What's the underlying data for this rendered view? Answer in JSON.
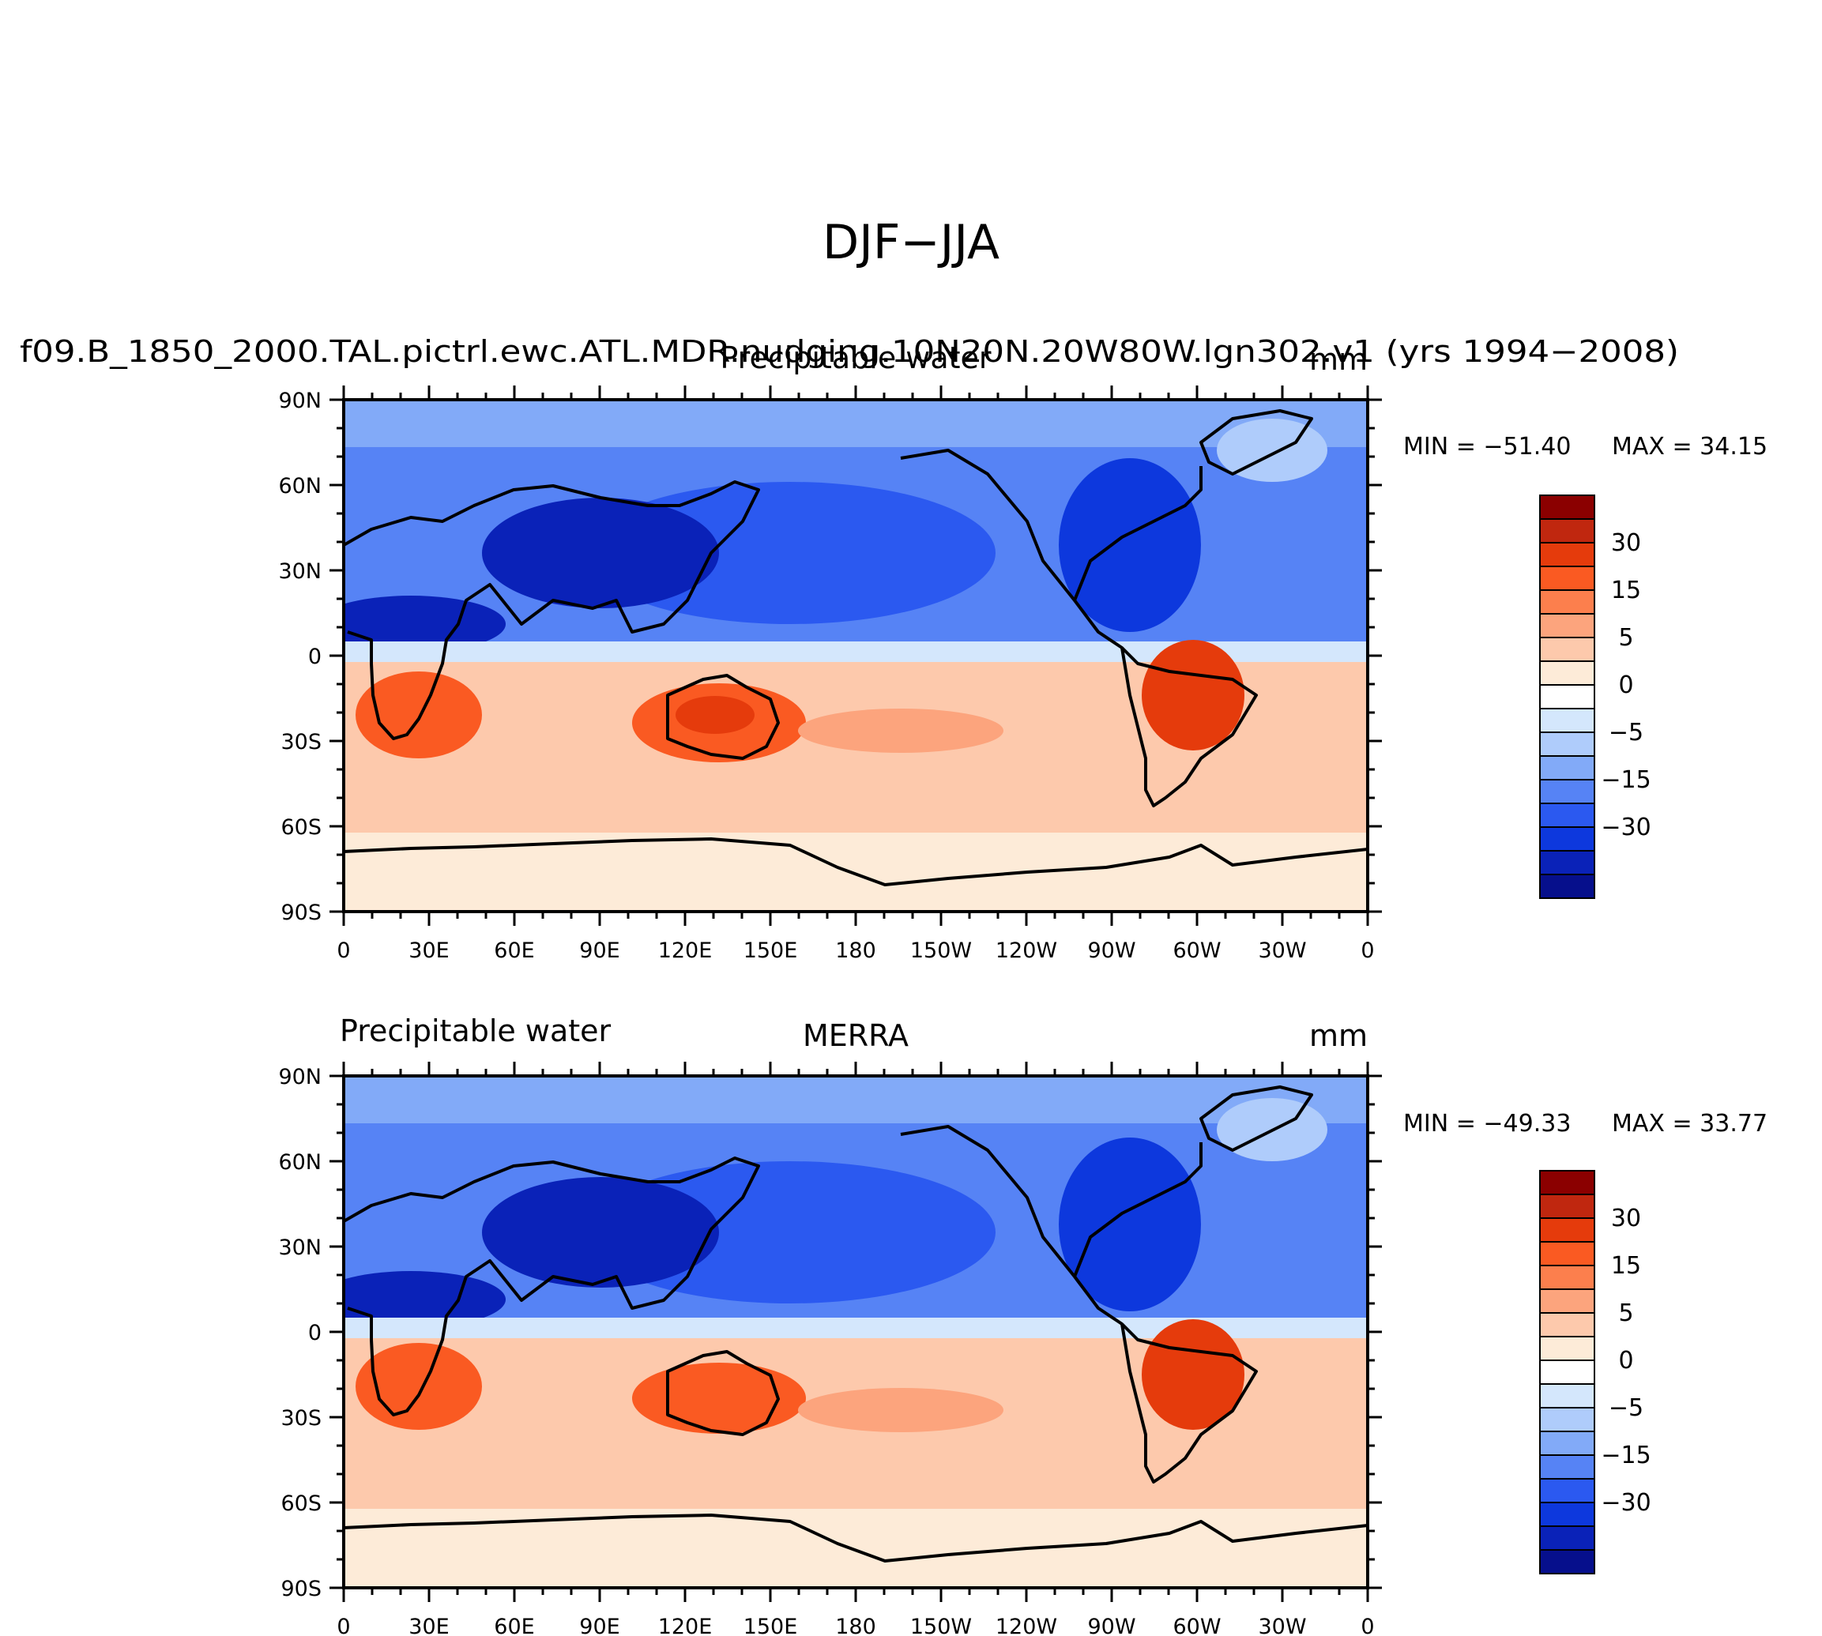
{
  "figure": {
    "title": "DJF−JJA",
    "background": "#ffffff"
  },
  "lon_ticks": [
    "0",
    "30E",
    "60E",
    "90E",
    "120E",
    "150E",
    "180",
    "150W",
    "120W",
    "90W",
    "60W",
    "30W",
    "0"
  ],
  "lat_ticks": [
    "90N",
    "60N",
    "30N",
    "0",
    "30S",
    "60S",
    "90S"
  ],
  "colorbar": {
    "tick_labels": [
      "30",
      "15",
      "5",
      "0",
      "−5",
      "−15",
      "−30"
    ],
    "colors": [
      "#8b0000",
      "#c0270f",
      "#e53b0c",
      "#fa5a22",
      "#fc7f4d",
      "#fca47d",
      "#fdc9ac",
      "#fdebd8",
      "#ffffff",
      "#d4e7fc",
      "#afccfb",
      "#82aaf8",
      "#5683f5",
      "#2b59f0",
      "#0d38dd",
      "#0a22b8",
      "#060f8c"
    ]
  },
  "chart_data": [
    {
      "type": "heatmap",
      "variant": "filled-contour world map",
      "left_title": "f09.B_1850_2000.TAL.pictrl.ewc.ATL.MDR.nudging.10N20N.20W80W.lgn302.v1 (yrs 1994−2008)",
      "center_title": "Precipitable water",
      "right_title": "mm",
      "units": "mm",
      "min_label": "MIN = −51.40",
      "max_label": "MAX =  34.15",
      "min": -51.4,
      "max": 34.15,
      "x_range": [
        0,
        360
      ],
      "y_range": [
        -90,
        90
      ]
    },
    {
      "type": "heatmap",
      "variant": "filled-contour world map",
      "left_title": "Precipitable water",
      "center_title": "MERRA",
      "right_title": "mm",
      "units": "mm",
      "min_label": "MIN = −49.33",
      "max_label": "MAX =  33.77",
      "min": -49.33,
      "max": 33.77,
      "x_range": [
        0,
        360
      ],
      "y_range": [
        -90,
        90
      ]
    }
  ]
}
